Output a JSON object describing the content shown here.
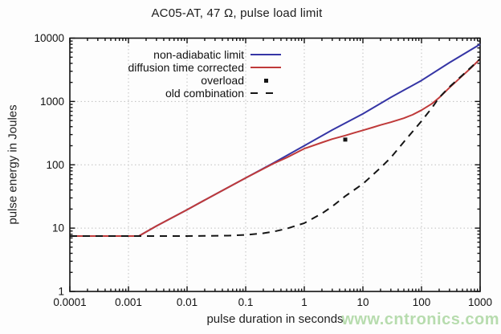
{
  "watermark": "www.cntronics.com",
  "colors": {
    "non_adiabatic": "#3535a5",
    "diffusion_corrected": "#bf3a3a",
    "black_series": "#151515",
    "grid": "#bfbfbf",
    "axis": "#111111",
    "watermark_green": "#b7dcae"
  },
  "chart_data": {
    "type": "line",
    "title": "AC05-AT, 47 Ω, pulse load limit",
    "xlabel": "pulse duration in seconds",
    "ylabel": "pulse energy in Joules",
    "x_scale": "log",
    "y_scale": "log",
    "xlim": [
      0.0001,
      1000
    ],
    "ylim": [
      1,
      10000
    ],
    "grid": true,
    "legend_position": "top-left-inside",
    "x_ticks": [
      {
        "v": 0.0001,
        "label": "0.0001"
      },
      {
        "v": 0.001,
        "label": "0.001"
      },
      {
        "v": 0.01,
        "label": "0.01"
      },
      {
        "v": 0.1,
        "label": "0.1"
      },
      {
        "v": 1,
        "label": "1"
      },
      {
        "v": 10,
        "label": "10"
      },
      {
        "v": 100,
        "label": "100"
      },
      {
        "v": 1000,
        "label": "1000"
      }
    ],
    "y_ticks": [
      {
        "v": 1,
        "label": "1"
      },
      {
        "v": 10,
        "label": "10"
      },
      {
        "v": 100,
        "label": "100"
      },
      {
        "v": 1000,
        "label": "1000"
      },
      {
        "v": 10000,
        "label": "10000"
      }
    ],
    "series": [
      {
        "name": "non-adiabatic limit",
        "kind": "line",
        "style": "solid",
        "color": "#3535a5",
        "points": [
          [
            0.0001,
            7.5
          ],
          [
            0.0015,
            7.5
          ],
          [
            0.003,
            10.8
          ],
          [
            0.01,
            19.5
          ],
          [
            0.03,
            34
          ],
          [
            0.1,
            62
          ],
          [
            0.3,
            107
          ],
          [
            1,
            200
          ],
          [
            3,
            355
          ],
          [
            10,
            640
          ],
          [
            30,
            1160
          ],
          [
            100,
            2150
          ],
          [
            300,
            4100
          ],
          [
            1000,
            8000
          ]
        ]
      },
      {
        "name": "diffusion time corrected",
        "kind": "line",
        "style": "solid",
        "color": "#bf3a3a",
        "points": [
          [
            0.0001,
            7.5
          ],
          [
            0.0015,
            7.5
          ],
          [
            0.003,
            10.8
          ],
          [
            0.01,
            19.5
          ],
          [
            0.03,
            34
          ],
          [
            0.1,
            62
          ],
          [
            0.3,
            105
          ],
          [
            0.5,
            130
          ],
          [
            1,
            180
          ],
          [
            2,
            225
          ],
          [
            3,
            255
          ],
          [
            5,
            290
          ],
          [
            7,
            318
          ],
          [
            10,
            350
          ],
          [
            15,
            392
          ],
          [
            20,
            425
          ],
          [
            30,
            470
          ],
          [
            50,
            545
          ],
          [
            70,
            615
          ],
          [
            100,
            730
          ],
          [
            150,
            920
          ],
          [
            200,
            1150
          ],
          [
            300,
            1650
          ],
          [
            500,
            2550
          ],
          [
            700,
            3400
          ],
          [
            1000,
            4700
          ]
        ]
      },
      {
        "name": "overload",
        "kind": "scatter",
        "marker": "square",
        "color": "#151515",
        "points": [
          [
            5,
            250
          ]
        ]
      },
      {
        "name": "old combination",
        "kind": "line",
        "style": "dashed",
        "color": "#151515",
        "points": [
          [
            0.0001,
            7.5
          ],
          [
            0.001,
            7.5
          ],
          [
            0.01,
            7.5
          ],
          [
            0.05,
            7.6
          ],
          [
            0.1,
            7.8
          ],
          [
            0.2,
            8.3
          ],
          [
            0.3,
            8.8
          ],
          [
            0.5,
            9.8
          ],
          [
            1,
            12
          ],
          [
            2,
            17
          ],
          [
            3,
            22
          ],
          [
            5,
            32
          ],
          [
            10,
            50
          ],
          [
            20,
            90
          ],
          [
            30,
            130
          ],
          [
            50,
            230
          ],
          [
            100,
            490
          ],
          [
            150,
            790
          ],
          [
            200,
            1150
          ],
          [
            300,
            1700
          ],
          [
            500,
            2600
          ],
          [
            1000,
            4700
          ]
        ]
      }
    ]
  }
}
